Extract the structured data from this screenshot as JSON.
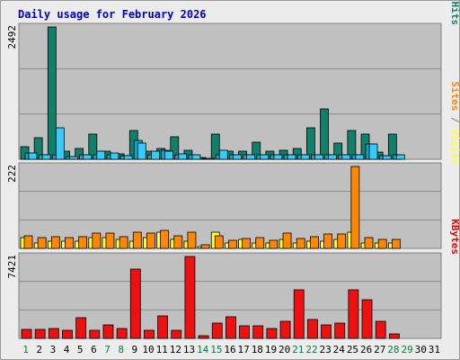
{
  "chart_data": [
    {
      "type": "bar",
      "title": "Daily usage for February 2026",
      "panel": "hits-files-pages",
      "ymax_label": "2492",
      "right_label": [
        {
          "text": "Pages",
          "color": "#33ccff"
        },
        {
          "text": " / ",
          "color": "#3355aa"
        },
        {
          "text": "Files",
          "color": "#2299cc"
        },
        {
          "text": " / ",
          "color": "#3355aa"
        },
        {
          "text": "Hits",
          "color": "#11806a"
        }
      ],
      "series": [
        {
          "name": "Hits",
          "color": "#11806a",
          "values": [
            245,
            410,
            2492,
            150,
            205,
            470,
            150,
            105,
            550,
            150,
            205,
            430,
            170,
            40,
            470,
            145,
            150,
            330,
            150,
            170,
            205,
            600,
            950,
            300,
            540,
            480,
            130,
            470
          ]
        },
        {
          "name": "Files",
          "color": "#1ba0c8",
          "values": [
            125,
            80,
            80,
            50,
            80,
            80,
            80,
            60,
            350,
            80,
            170,
            80,
            80,
            20,
            80,
            80,
            80,
            80,
            80,
            80,
            80,
            80,
            80,
            80,
            80,
            280,
            60,
            80
          ]
        },
        {
          "name": "Pages",
          "color": "#33ccff",
          "values": [
            120,
            80,
            590,
            50,
            80,
            150,
            120,
            60,
            310,
            150,
            150,
            100,
            80,
            15,
            170,
            80,
            80,
            80,
            80,
            80,
            80,
            80,
            80,
            80,
            80,
            290,
            60,
            80
          ]
        }
      ]
    },
    {
      "type": "bar",
      "panel": "visits-sites",
      "ymax_label": "222",
      "right_label": [
        {
          "text": "Sites",
          "color": "#ff8800"
        },
        {
          "text": " / ",
          "color": "#aa8833"
        },
        {
          "text": "Visits",
          "color": "#ffff33"
        }
      ],
      "series": [
        {
          "name": "Visits",
          "color": "#ffff33",
          "values": [
            30,
            15,
            20,
            20,
            20,
            30,
            30,
            25,
            20,
            30,
            45,
            25,
            20,
            5,
            45,
            15,
            25,
            15,
            15,
            25,
            15,
            20,
            20,
            25,
            45,
            15,
            15,
            15
          ]
        },
        {
          "name": "Sites",
          "color": "#ff8800",
          "values": [
            35,
            30,
            32,
            30,
            32,
            42,
            42,
            32,
            45,
            42,
            48,
            35,
            45,
            10,
            35,
            22,
            28,
            30,
            22,
            42,
            28,
            32,
            40,
            40,
            222,
            30,
            25,
            25
          ]
        }
      ]
    },
    {
      "type": "bar",
      "panel": "kbytes",
      "ymax_label": "7421",
      "right_label": [
        {
          "text": "KBytes",
          "color": "#ee0000"
        }
      ],
      "series": [
        {
          "name": "KBytes",
          "color": "#ee1111",
          "values": [
            520,
            520,
            570,
            440,
            1200,
            460,
            800,
            590,
            4000,
            490,
            1300,
            490,
            4700,
            150,
            870,
            1260,
            700,
            700,
            560,
            1000,
            2800,
            1090,
            800,
            880,
            2800,
            2200,
            1000,
            260
          ]
        }
      ]
    }
  ],
  "x_labels": [
    "1",
    "2",
    "3",
    "4",
    "5",
    "6",
    "7",
    "8",
    "9",
    "10",
    "11",
    "12",
    "13",
    "14",
    "15",
    "16",
    "17",
    "18",
    "19",
    "20",
    "21",
    "22",
    "23",
    "24",
    "25",
    "26",
    "27",
    "28",
    "29",
    "30",
    "31"
  ],
  "weekend_days": [
    1,
    7,
    8,
    14,
    15,
    21,
    22,
    28,
    29
  ],
  "colors": {
    "title": "#0000cc",
    "panel_bg": "#c0c0c0",
    "gridline": "#8a8a8a",
    "weekday_label": "#000000",
    "weekend_label": "#008040"
  }
}
